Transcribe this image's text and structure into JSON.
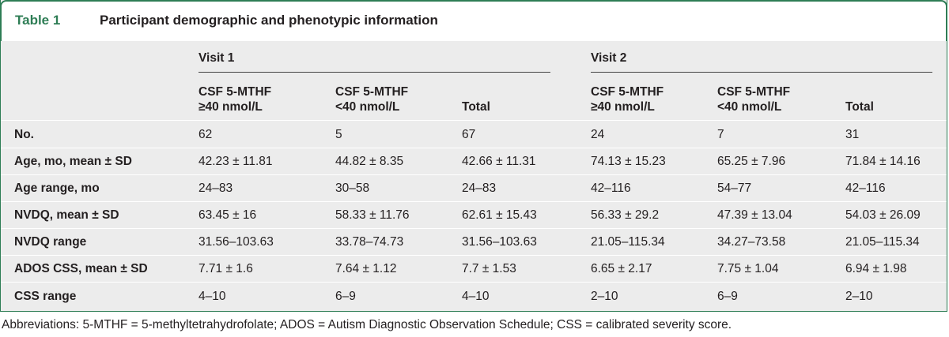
{
  "caption": {
    "label": "Table 1",
    "title": "Participant demographic and phenotypic information"
  },
  "groups": [
    {
      "label": "Visit 1"
    },
    {
      "label": "Visit 2"
    }
  ],
  "columns": [
    {
      "line1": "CSF 5-MTHF",
      "line2": "≥40 nmol/L"
    },
    {
      "line1": "CSF 5-MTHF",
      "line2": "<40 nmol/L"
    },
    {
      "line1": "",
      "line2": "Total"
    },
    {
      "line1": "CSF 5-MTHF",
      "line2": "≥40 nmol/L"
    },
    {
      "line1": "CSF 5-MTHF",
      "line2": "<40 nmol/L"
    },
    {
      "line1": "",
      "line2": "Total"
    }
  ],
  "rows": [
    {
      "label": "No.",
      "cells": [
        "62",
        "5",
        "67",
        "24",
        "7",
        "31"
      ]
    },
    {
      "label": "Age, mo, mean ± SD",
      "cells": [
        "42.23 ± 11.81",
        "44.82 ± 8.35",
        "42.66 ± 11.31",
        "74.13 ± 15.23",
        "65.25 ± 7.96",
        "71.84 ± 14.16"
      ]
    },
    {
      "label": "Age range, mo",
      "cells": [
        "24–83",
        "30–58",
        "24–83",
        "42–116",
        "54–77",
        "42–116"
      ]
    },
    {
      "label": "NVDQ, mean ± SD",
      "cells": [
        "63.45 ± 16",
        "58.33 ± 11.76",
        "62.61 ± 15.43",
        "56.33 ± 29.2",
        "47.39 ± 13.04",
        "54.03 ± 26.09"
      ]
    },
    {
      "label": "NVDQ range",
      "cells": [
        "31.56–103.63",
        "33.78–74.73",
        "31.56–103.63",
        "21.05–115.34",
        "34.27–73.58",
        "21.05–115.34"
      ]
    },
    {
      "label": "ADOS CSS, mean ± SD",
      "cells": [
        "7.71 ± 1.6",
        "7.64 ± 1.12",
        "7.7 ± 1.53",
        "6.65 ± 2.17",
        "7.75 ± 1.04",
        "6.94 ± 1.98"
      ]
    },
    {
      "label": "CSS range",
      "cells": [
        "4–10",
        "6–9",
        "4–10",
        "2–10",
        "6–9",
        "2–10"
      ]
    }
  ],
  "footnote": "Abbreviations: 5-MTHF = 5-methyltetrahydrofolate; ADOS = Autism Diagnostic Observation Schedule; CSS = calibrated severity score.",
  "colors": {
    "accent": "#2e7d55",
    "table_background": "#ececec",
    "text": "#231f20"
  }
}
